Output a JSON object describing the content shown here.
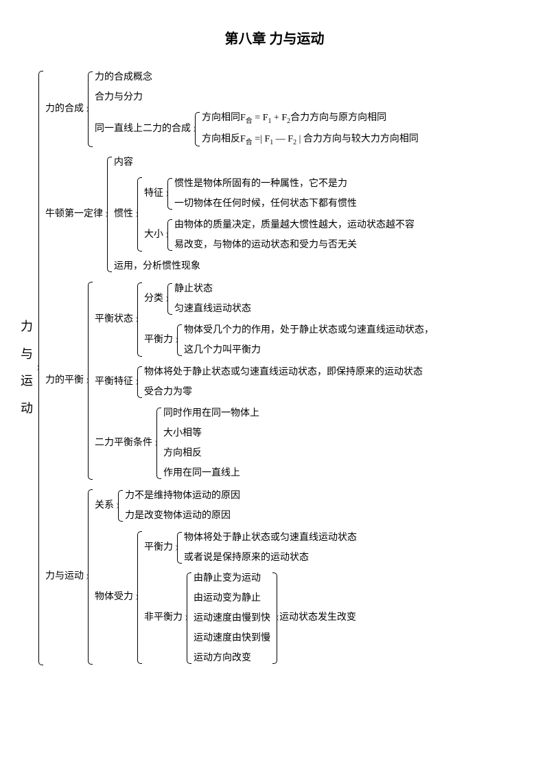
{
  "title": "第八章  力与运动",
  "root": "力与运动",
  "s1": {
    "label": "力的合成",
    "a": "力的合成概念",
    "b": "合力与分力",
    "c": {
      "label": "同一直线上二力的合成",
      "c1a": "方向相同F",
      "c1b": " = F",
      "c1c": " + F",
      "c1d": "合力方向与原方向相同",
      "c2a": "方向相反F",
      "c2b": " =| F",
      "c2c": " — F",
      "c2d": " | 合力方向与较大力方向相同",
      "sub_he": "合",
      "sub_1": "1",
      "sub_2": "2"
    }
  },
  "s2": {
    "label": "牛顿第一定律",
    "a": "内容",
    "b": {
      "label": "惯性",
      "b1": {
        "label": "特征",
        "x": "惯性是物体所固有的一种属性，它不是力",
        "y": "一切物体在任何时候，任何状态下都有惯性"
      },
      "b2": {
        "label": "大小",
        "x": "由物体的质量决定，质量越大惯性越大，运动状态越不容",
        "y": "易改变，与物体的运动状态和受力与否无关"
      }
    },
    "c": "运用，分析惯性现象"
  },
  "s3": {
    "label": "力的平衡",
    "a": {
      "label": "平衡状态",
      "a1": {
        "label": "分类",
        "x": "静止状态",
        "y": "匀速直线运动状态"
      },
      "a2": {
        "label": "平衡力",
        "x": "物体受几个力的作用，处于静止状态或匀速直线运动状态，",
        "y": "这几个力叫平衡力"
      }
    },
    "b": {
      "label": "平衡特征",
      "x": "物体将处于静止状态或匀速直线运动状态，即保持原来的运动状态",
      "y": "受合力为零"
    },
    "c": {
      "label": "二力平衡条件",
      "w": "同时作用在同一物体上",
      "x": "大小相等",
      "y": "方向相反",
      "z": "作用在同一直线上"
    }
  },
  "s4": {
    "label": "力与运动",
    "a": {
      "label": "关系",
      "x": "力不是维持物体运动的原因",
      "y": "力是改变物体运动的原因"
    },
    "b": {
      "label": "物体受力",
      "b1": {
        "label": "平衡力",
        "x": "物体将处于静止状态或匀速直线运动状态",
        "y": "或者说是保持原来的运动状态"
      },
      "b2": {
        "label": "非平衡力",
        "v": "由静止变为运动",
        "w": "由运动变为静止",
        "x": "运动速度由慢到快",
        "y": "运动速度由快到慢",
        "z": "运动方向改变",
        "tail": "运动状态发生改变"
      }
    }
  }
}
